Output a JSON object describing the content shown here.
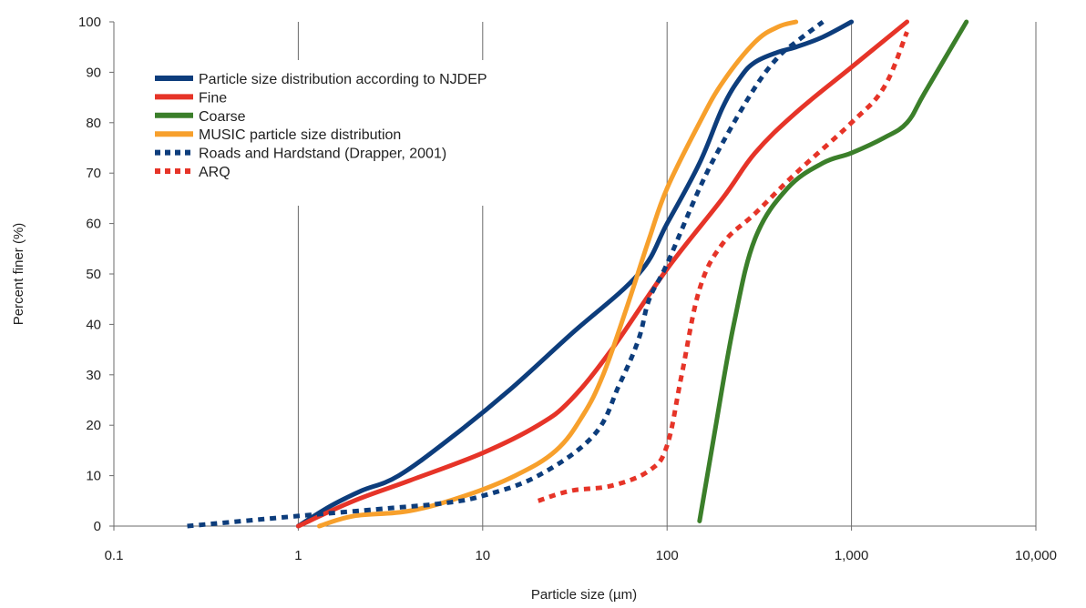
{
  "chart_data": {
    "type": "line",
    "xlabel": "Particle size (µm)",
    "ylabel": "Percent finer (%)",
    "x_scale": "log",
    "xlim": [
      0.1,
      10000
    ],
    "ylim": [
      0,
      100
    ],
    "x_ticks": [
      0.1,
      1,
      10,
      100,
      1000,
      10000
    ],
    "x_tick_labels": [
      "0.1",
      "1",
      "10",
      "100",
      "1,000",
      "10,000"
    ],
    "y_ticks": [
      0,
      10,
      20,
      30,
      40,
      50,
      60,
      70,
      80,
      90,
      100
    ],
    "y_tick_labels": [
      "0",
      "10",
      "20",
      "30",
      "40",
      "50",
      "60",
      "70",
      "80",
      "90",
      "100"
    ],
    "grid": "vertical",
    "legend_position": "top-left",
    "series": [
      {
        "name": "Particle size distribution according to NJDEP",
        "color": "#0d3d7c",
        "dash": "solid",
        "points": [
          [
            1,
            0
          ],
          [
            1.5,
            4
          ],
          [
            2.2,
            7
          ],
          [
            3.5,
            10
          ],
          [
            7,
            18
          ],
          [
            14,
            27
          ],
          [
            30,
            38
          ],
          [
            70,
            50
          ],
          [
            100,
            60
          ],
          [
            150,
            72
          ],
          [
            200,
            83
          ],
          [
            250,
            89
          ],
          [
            300,
            92
          ],
          [
            400,
            94
          ],
          [
            500,
            95
          ],
          [
            700,
            97
          ],
          [
            1000,
            100
          ]
        ]
      },
      {
        "name": "Fine",
        "color": "#e63428",
        "dash": "solid",
        "points": [
          [
            1,
            0
          ],
          [
            2,
            5
          ],
          [
            4,
            9
          ],
          [
            10,
            14.5
          ],
          [
            20,
            20
          ],
          [
            30,
            25
          ],
          [
            50,
            35
          ],
          [
            100,
            51
          ],
          [
            200,
            65
          ],
          [
            300,
            74
          ],
          [
            500,
            82
          ],
          [
            1000,
            91
          ],
          [
            2000,
            100
          ]
        ]
      },
      {
        "name": "Coarse",
        "color": "#3b7f2a",
        "dash": "solid",
        "points": [
          [
            150,
            1
          ],
          [
            180,
            18
          ],
          [
            230,
            40
          ],
          [
            300,
            57
          ],
          [
            450,
            67
          ],
          [
            700,
            72
          ],
          [
            1000,
            74
          ],
          [
            1500,
            77
          ],
          [
            2000,
            80
          ],
          [
            2500,
            86
          ],
          [
            4200,
            100
          ]
        ]
      },
      {
        "name": "MUSIC particle size distribution",
        "color": "#f7a02c",
        "dash": "solid",
        "points": [
          [
            1.3,
            0
          ],
          [
            2,
            2
          ],
          [
            4,
            3
          ],
          [
            8,
            6
          ],
          [
            15,
            10
          ],
          [
            25,
            15
          ],
          [
            35,
            22
          ],
          [
            45,
            30
          ],
          [
            60,
            43
          ],
          [
            80,
            57
          ],
          [
            100,
            67
          ],
          [
            150,
            80
          ],
          [
            200,
            88
          ],
          [
            300,
            96
          ],
          [
            400,
            99
          ],
          [
            500,
            100
          ]
        ]
      },
      {
        "name": "Roads and Hardstand (Drapper, 2001)",
        "color": "#0d3d7c",
        "dash": "dotted",
        "points": [
          [
            0.25,
            0
          ],
          [
            0.5,
            1
          ],
          [
            1,
            2
          ],
          [
            3,
            3.5
          ],
          [
            6,
            4.5
          ],
          [
            10,
            6
          ],
          [
            20,
            10
          ],
          [
            40,
            18
          ],
          [
            55,
            28
          ],
          [
            70,
            37
          ],
          [
            80,
            45
          ],
          [
            100,
            52
          ],
          [
            150,
            67
          ],
          [
            200,
            76
          ],
          [
            300,
            87
          ],
          [
            400,
            93
          ],
          [
            500,
            96
          ],
          [
            700,
            100
          ]
        ]
      },
      {
        "name": "ARQ",
        "color": "#e63428",
        "dash": "dotted",
        "points": [
          [
            20,
            5
          ],
          [
            30,
            7
          ],
          [
            50,
            8
          ],
          [
            80,
            11
          ],
          [
            100,
            16
          ],
          [
            120,
            30
          ],
          [
            150,
            47
          ],
          [
            200,
            56
          ],
          [
            300,
            62
          ],
          [
            500,
            70
          ],
          [
            1000,
            80
          ],
          [
            1500,
            87
          ],
          [
            2000,
            98
          ]
        ]
      }
    ]
  }
}
